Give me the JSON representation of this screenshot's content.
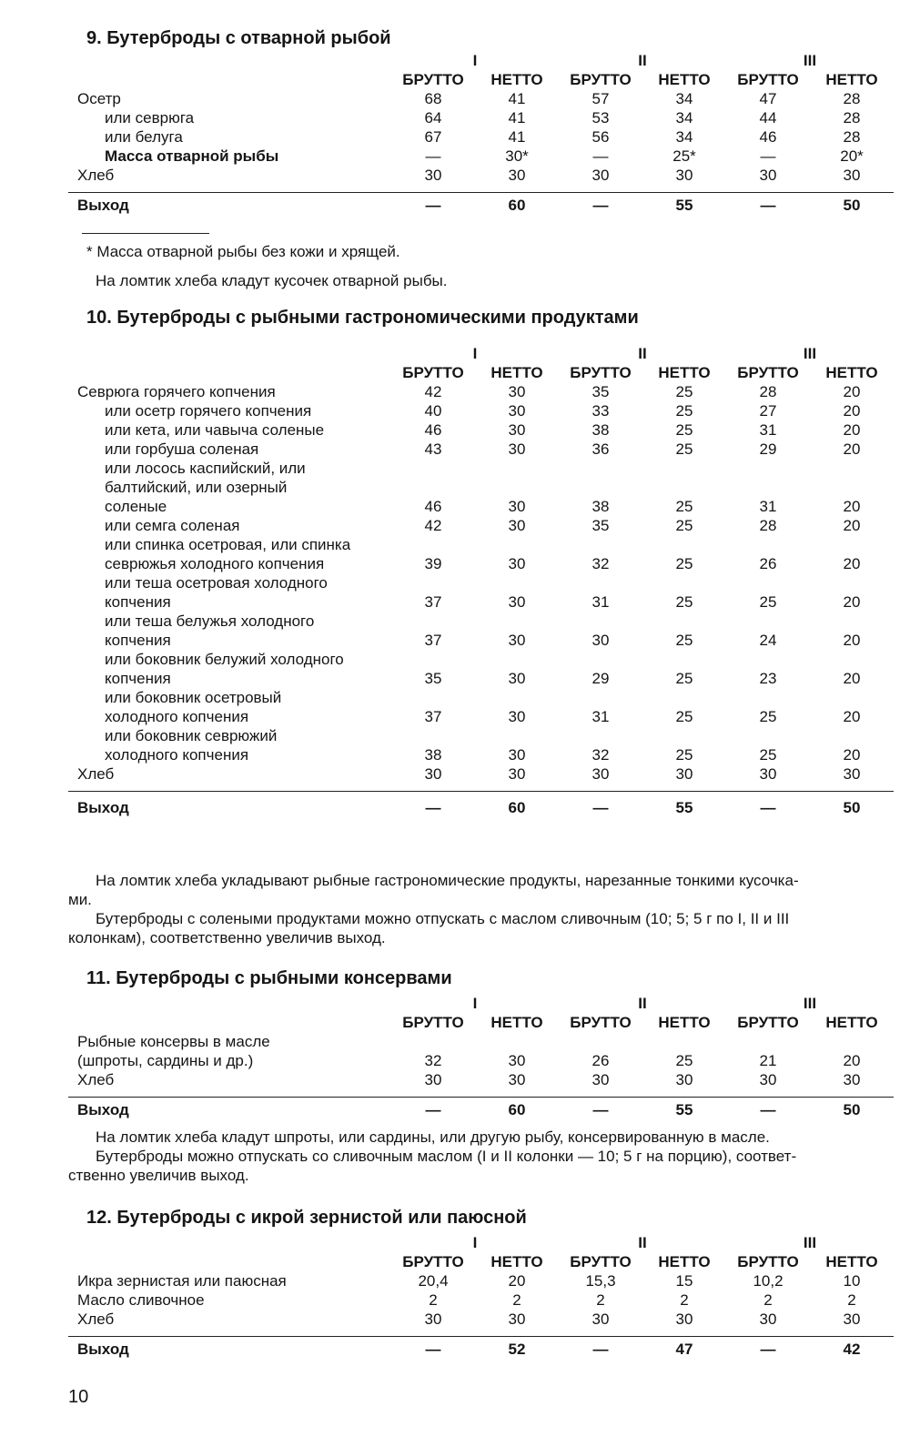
{
  "recipes": [
    {
      "title": "9. Бутерброды с отварной рыбой",
      "columns": [
        "I",
        "II",
        "III"
      ],
      "subheaders": [
        "БРУТТО",
        "НЕТТО",
        "БРУТТО",
        "НЕТТО",
        "БРУТТО",
        "НЕТТО"
      ],
      "rows": [
        {
          "name": [
            "Осетр"
          ],
          "values": [
            "68",
            "41",
            "57",
            "34",
            "47",
            "28"
          ]
        },
        {
          "name": [
            "или севрюга"
          ],
          "indent": true,
          "values": [
            "64",
            "41",
            "53",
            "34",
            "44",
            "28"
          ]
        },
        {
          "name": [
            "или белуга"
          ],
          "indent": true,
          "values": [
            "67",
            "41",
            "56",
            "34",
            "46",
            "28"
          ]
        },
        {
          "name": [
            "Масса отварной рыбы"
          ],
          "indent": true,
          "bold": true,
          "values": [
            "—",
            "30*",
            "—",
            "25*",
            "—",
            "20*"
          ]
        },
        {
          "name": [
            "Хлеб"
          ],
          "values": [
            "30",
            "30",
            "30",
            "30",
            "30",
            "30"
          ]
        }
      ],
      "output": {
        "name": "Выход",
        "values": [
          "—",
          "60",
          "—",
          "55",
          "—",
          "50"
        ]
      },
      "footnote": "* Масса отварной рыбы без кожи и хрящей.",
      "notes": [
        {
          "lines": [
            "На ломтик хлеба кладут кусочек отварной рыбы."
          ]
        }
      ]
    },
    {
      "title": "10. Бутерброды с рыбными гастрономическими продуктами",
      "columns": [
        "I",
        "II",
        "III"
      ],
      "subheaders": [
        "БРУТТО",
        "НЕТТО",
        "БРУТТО",
        "НЕТТО",
        "БРУТТО",
        "НЕТТО"
      ],
      "rows": [
        {
          "name": [
            "Севрюга горячего копчения"
          ],
          "values": [
            "42",
            "30",
            "35",
            "25",
            "28",
            "20"
          ]
        },
        {
          "name": [
            "или осетр горячего копчения"
          ],
          "indent": true,
          "values": [
            "40",
            "30",
            "33",
            "25",
            "27",
            "20"
          ]
        },
        {
          "name": [
            "или кета, или чавыча соленые"
          ],
          "indent": true,
          "values": [
            "46",
            "30",
            "38",
            "25",
            "31",
            "20"
          ]
        },
        {
          "name": [
            "или горбуша соленая"
          ],
          "indent": true,
          "values": [
            "43",
            "30",
            "36",
            "25",
            "29",
            "20"
          ]
        },
        {
          "name": [
            "или лосось каспийский, или",
            "балтийский, или озерный",
            "соленые"
          ],
          "indent": true,
          "values": [
            "46",
            "30",
            "38",
            "25",
            "31",
            "20"
          ]
        },
        {
          "name": [
            "или семга соленая"
          ],
          "indent": true,
          "values": [
            "42",
            "30",
            "35",
            "25",
            "28",
            "20"
          ]
        },
        {
          "name": [
            "или спинка осетровая, или спинка",
            "севрюжья холодного копчения"
          ],
          "indent": true,
          "values": [
            "39",
            "30",
            "32",
            "25",
            "26",
            "20"
          ]
        },
        {
          "name": [
            "или теша осетровая холодного",
            "копчения"
          ],
          "indent": true,
          "values": [
            "37",
            "30",
            "31",
            "25",
            "25",
            "20"
          ]
        },
        {
          "name": [
            "или теша белужья холодного",
            "копчения"
          ],
          "indent": true,
          "values": [
            "37",
            "30",
            "30",
            "25",
            "24",
            "20"
          ]
        },
        {
          "name": [
            "или боковник белужий холодного",
            "копчения"
          ],
          "indent": true,
          "values": [
            "35",
            "30",
            "29",
            "25",
            "23",
            "20"
          ]
        },
        {
          "name": [
            "или боковник осетровый",
            "холодного копчения"
          ],
          "indent": true,
          "values": [
            "37",
            "30",
            "31",
            "25",
            "25",
            "20"
          ]
        },
        {
          "name": [
            "или боковник севрюжий",
            "холодного копчения"
          ],
          "indent": true,
          "values": [
            "38",
            "30",
            "32",
            "25",
            "25",
            "20"
          ]
        },
        {
          "name": [
            "Хлеб"
          ],
          "values": [
            "30",
            "30",
            "30",
            "30",
            "30",
            "30"
          ]
        }
      ],
      "output": {
        "name": "Выход",
        "values": [
          "—",
          "60",
          "—",
          "55",
          "—",
          "50"
        ]
      },
      "notes": [
        {
          "lines": [
            "На ломтик хлеба укладывают рыбные гастрономические продукты, нарезанные тонкими кусочка-",
            "ми."
          ]
        },
        {
          "lines": [
            "Бутерброды с солеными продуктами можно отпускать с маслом сливочным (10; 5; 5 г по I, II и III",
            "колонкам), соответственно увеличив выход."
          ]
        }
      ]
    },
    {
      "title": "11. Бутерброды с рыбными консервами",
      "columns": [
        "I",
        "II",
        "III"
      ],
      "subheaders": [
        "БРУТТО",
        "НЕТТО",
        "БРУТТО",
        "НЕТТО",
        "БРУТТО",
        "НЕТТО"
      ],
      "rows": [
        {
          "name": [
            "Рыбные консервы в масле",
            "(шпроты, сардины и др.)"
          ],
          "values": [
            "32",
            "30",
            "26",
            "25",
            "21",
            "20"
          ]
        },
        {
          "name": [
            "Хлеб"
          ],
          "values": [
            "30",
            "30",
            "30",
            "30",
            "30",
            "30"
          ]
        }
      ],
      "output": {
        "name": "Выход",
        "values": [
          "—",
          "60",
          "—",
          "55",
          "—",
          "50"
        ]
      },
      "notes": [
        {
          "lines": [
            "На ломтик хлеба кладут шпроты, или сардины, или другую рыбу, консервированную в масле."
          ]
        },
        {
          "lines": [
            "Бутерброды можно отпускать со сливочным маслом (I и II колонки — 10; 5 г на порцию), соответ-",
            "ственно увеличив выход."
          ]
        }
      ]
    },
    {
      "title": "12. Бутерброды с икрой зернистой или паюсной",
      "columns": [
        "I",
        "II",
        "III"
      ],
      "subheaders": [
        "БРУТТО",
        "НЕТТО",
        "БРУТТО",
        "НЕТТО",
        "БРУТТО",
        "НЕТТО"
      ],
      "rows": [
        {
          "name": [
            "Икра зернистая или паюсная"
          ],
          "values": [
            "20,4",
            "20",
            "15,3",
            "15",
            "10,2",
            "10"
          ]
        },
        {
          "name": [
            "Масло сливочное"
          ],
          "values": [
            "2",
            "2",
            "2",
            "2",
            "2",
            "2"
          ]
        },
        {
          "name": [
            "Хлеб"
          ],
          "values": [
            "30",
            "30",
            "30",
            "30",
            "30",
            "30"
          ]
        }
      ],
      "output": {
        "name": "Выход",
        "values": [
          "—",
          "52",
          "—",
          "47",
          "—",
          "42"
        ]
      }
    }
  ],
  "page_number": "10"
}
